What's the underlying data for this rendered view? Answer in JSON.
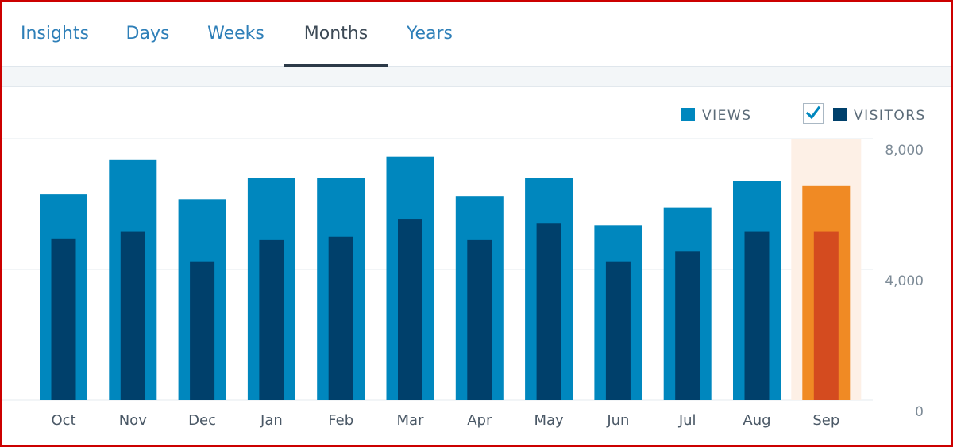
{
  "tabs": [
    {
      "label": "Insights",
      "active": false
    },
    {
      "label": "Days",
      "active": false
    },
    {
      "label": "Weeks",
      "active": false
    },
    {
      "label": "Months",
      "active": true
    },
    {
      "label": "Years",
      "active": false
    }
  ],
  "legend": {
    "views_label": "VIEWS",
    "visitors_label": "VISITORS",
    "visitors_checked": true
  },
  "colors": {
    "views": "#0087be",
    "visitors": "#00406b",
    "highlight_views": "#f08a24",
    "highlight_visitors": "#d44b1f",
    "highlight_bg": "#fdf0e6",
    "frame": "#cc0000"
  },
  "chart_data": {
    "type": "bar",
    "categories": [
      "Oct",
      "Nov",
      "Dec",
      "Jan",
      "Feb",
      "Mar",
      "Apr",
      "May",
      "Jun",
      "Jul",
      "Aug",
      "Sep"
    ],
    "series": [
      {
        "name": "VIEWS",
        "values": [
          6300,
          7350,
          6150,
          6800,
          6800,
          7450,
          6250,
          6800,
          5350,
          5900,
          6700,
          6550
        ]
      },
      {
        "name": "VISITORS",
        "values": [
          4950,
          5150,
          4250,
          4900,
          5000,
          5550,
          4900,
          5400,
          4250,
          4550,
          5150,
          5150
        ]
      }
    ],
    "highlighted_category": "Sep",
    "y_ticks": [
      "8,000",
      "4,000",
      "0"
    ],
    "ylim": [
      0,
      8000
    ],
    "grid": true,
    "legend_position": "top-right"
  }
}
